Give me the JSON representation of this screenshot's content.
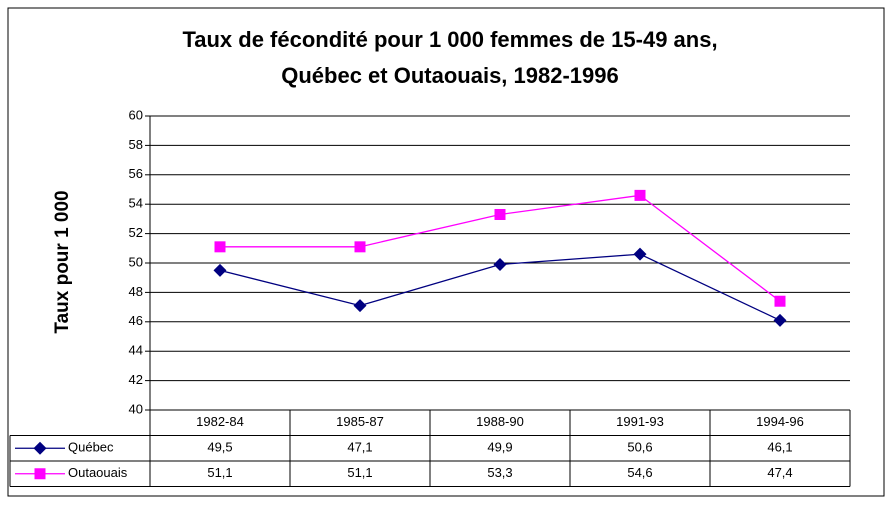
{
  "chart_data": {
    "type": "line",
    "title": [
      "Taux de fécondité pour 1 000 femmes de 15-49 ans,",
      "Québec et Outaouais, 1982-1996"
    ],
    "y_label": "Taux pour 1 000",
    "categories": [
      "1982-84",
      "1985-87",
      "1988-90",
      "1991-93",
      "1994-96"
    ],
    "series": [
      {
        "name": "Québec",
        "color": "#000080",
        "marker": "diamond",
        "values": [
          49.5,
          47.1,
          49.9,
          50.6,
          46.1
        ],
        "value_labels": [
          "49,5",
          "47,1",
          "49,9",
          "50,6",
          "46,1"
        ]
      },
      {
        "name": "Outaouais",
        "color": "#ff00ff",
        "marker": "square",
        "values": [
          51.1,
          51.1,
          53.3,
          54.6,
          47.4
        ],
        "value_labels": [
          "51,1",
          "51,1",
          "53,3",
          "54,6",
          "47,4"
        ]
      }
    ],
    "ylim": [
      40,
      60
    ],
    "yticks": [
      40,
      42,
      44,
      46,
      48,
      50,
      52,
      54,
      56,
      58,
      60
    ],
    "grid": true
  }
}
